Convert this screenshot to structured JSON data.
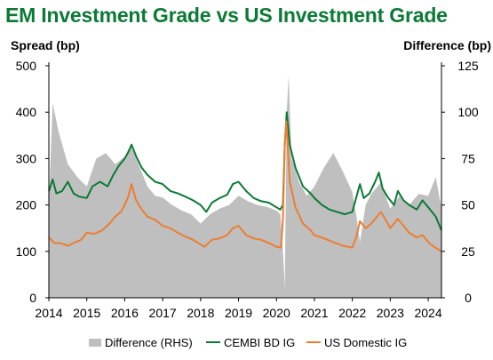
{
  "title": "EM Investment Grade vs US Investment Grade",
  "chart_data": {
    "type": "line",
    "ylabel_left": "Spread (bp)",
    "ylabel_right": "Difference (bp)",
    "x_ticks": [
      "2014",
      "2015",
      "2016",
      "2017",
      "2018",
      "2019",
      "2020",
      "2021",
      "2022",
      "2023",
      "2024"
    ],
    "y_left_ticks": [
      "0",
      "100",
      "200",
      "300",
      "400",
      "500"
    ],
    "y_right_ticks": [
      "0",
      "25",
      "50",
      "75",
      "100",
      "125"
    ],
    "ylim_left": [
      0,
      500
    ],
    "ylim_right": [
      0,
      125
    ],
    "xlim": [
      2014.0,
      2024.35
    ],
    "grid": false,
    "legend_position": "bottom",
    "series": [
      {
        "name": "Difference (RHS)",
        "kind": "area",
        "axis": "right",
        "color": "#bfbfbf",
        "points": [
          [
            2014.0,
            50
          ],
          [
            2014.1,
            105
          ],
          [
            2014.25,
            90
          ],
          [
            2014.5,
            72
          ],
          [
            2014.75,
            65
          ],
          [
            2015.0,
            60
          ],
          [
            2015.25,
            75
          ],
          [
            2015.5,
            78
          ],
          [
            2015.75,
            72
          ],
          [
            2016.0,
            76
          ],
          [
            2016.15,
            82
          ],
          [
            2016.4,
            70
          ],
          [
            2016.6,
            60
          ],
          [
            2016.8,
            55
          ],
          [
            2017.0,
            54
          ],
          [
            2017.25,
            50
          ],
          [
            2017.5,
            47
          ],
          [
            2017.75,
            45
          ],
          [
            2018.0,
            40
          ],
          [
            2018.25,
            45
          ],
          [
            2018.5,
            48
          ],
          [
            2018.75,
            50
          ],
          [
            2019.0,
            55
          ],
          [
            2019.25,
            52
          ],
          [
            2019.5,
            50
          ],
          [
            2019.75,
            49
          ],
          [
            2020.0,
            47
          ],
          [
            2020.1,
            45
          ],
          [
            2020.18,
            22
          ],
          [
            2020.22,
            5
          ],
          [
            2020.27,
            100
          ],
          [
            2020.32,
            120
          ],
          [
            2020.4,
            75
          ],
          [
            2020.6,
            62
          ],
          [
            2020.8,
            55
          ],
          [
            2021.0,
            60
          ],
          [
            2021.25,
            70
          ],
          [
            2021.5,
            78
          ],
          [
            2021.75,
            68
          ],
          [
            2022.0,
            57
          ],
          [
            2022.1,
            45
          ],
          [
            2022.2,
            30
          ],
          [
            2022.35,
            50
          ],
          [
            2022.5,
            56
          ],
          [
            2022.75,
            62
          ],
          [
            2023.0,
            48
          ],
          [
            2023.25,
            55
          ],
          [
            2023.5,
            50
          ],
          [
            2023.75,
            56
          ],
          [
            2024.0,
            55
          ],
          [
            2024.2,
            65
          ],
          [
            2024.35,
            48
          ]
        ]
      },
      {
        "name": "CEMBI BD IG",
        "kind": "line",
        "axis": "left",
        "color": "#0b7a35",
        "points": [
          [
            2014.0,
            230
          ],
          [
            2014.1,
            255
          ],
          [
            2014.2,
            225
          ],
          [
            2014.35,
            230
          ],
          [
            2014.5,
            250
          ],
          [
            2014.65,
            225
          ],
          [
            2014.8,
            218
          ],
          [
            2015.0,
            215
          ],
          [
            2015.15,
            240
          ],
          [
            2015.35,
            250
          ],
          [
            2015.55,
            240
          ],
          [
            2015.7,
            265
          ],
          [
            2015.85,
            285
          ],
          [
            2016.0,
            300
          ],
          [
            2016.1,
            315
          ],
          [
            2016.18,
            330
          ],
          [
            2016.3,
            305
          ],
          [
            2016.45,
            280
          ],
          [
            2016.6,
            265
          ],
          [
            2016.8,
            250
          ],
          [
            2017.0,
            245
          ],
          [
            2017.2,
            230
          ],
          [
            2017.4,
            225
          ],
          [
            2017.6,
            218
          ],
          [
            2017.8,
            210
          ],
          [
            2018.0,
            200
          ],
          [
            2018.15,
            185
          ],
          [
            2018.3,
            205
          ],
          [
            2018.5,
            215
          ],
          [
            2018.7,
            222
          ],
          [
            2018.85,
            245
          ],
          [
            2019.0,
            250
          ],
          [
            2019.2,
            230
          ],
          [
            2019.4,
            215
          ],
          [
            2019.6,
            208
          ],
          [
            2019.8,
            205
          ],
          [
            2020.0,
            195
          ],
          [
            2020.1,
            190
          ],
          [
            2020.17,
            200
          ],
          [
            2020.22,
            330
          ],
          [
            2020.27,
            400
          ],
          [
            2020.35,
            330
          ],
          [
            2020.5,
            280
          ],
          [
            2020.7,
            240
          ],
          [
            2020.9,
            225
          ],
          [
            2021.0,
            215
          ],
          [
            2021.2,
            200
          ],
          [
            2021.4,
            190
          ],
          [
            2021.6,
            185
          ],
          [
            2021.8,
            180
          ],
          [
            2022.0,
            185
          ],
          [
            2022.1,
            215
          ],
          [
            2022.2,
            245
          ],
          [
            2022.3,
            215
          ],
          [
            2022.45,
            225
          ],
          [
            2022.6,
            250
          ],
          [
            2022.7,
            270
          ],
          [
            2022.8,
            235
          ],
          [
            2022.95,
            215
          ],
          [
            2023.1,
            200
          ],
          [
            2023.2,
            230
          ],
          [
            2023.35,
            210
          ],
          [
            2023.5,
            200
          ],
          [
            2023.7,
            190
          ],
          [
            2023.85,
            210
          ],
          [
            2024.0,
            195
          ],
          [
            2024.2,
            175
          ],
          [
            2024.35,
            145
          ]
        ]
      },
      {
        "name": "US Domestic IG",
        "kind": "line",
        "axis": "left",
        "color": "#ed7d31",
        "points": [
          [
            2014.0,
            130
          ],
          [
            2014.15,
            118
          ],
          [
            2014.3,
            118
          ],
          [
            2014.5,
            112
          ],
          [
            2014.7,
            120
          ],
          [
            2014.85,
            125
          ],
          [
            2015.0,
            140
          ],
          [
            2015.2,
            138
          ],
          [
            2015.4,
            145
          ],
          [
            2015.6,
            160
          ],
          [
            2015.75,
            175
          ],
          [
            2015.9,
            185
          ],
          [
            2016.0,
            200
          ],
          [
            2016.1,
            220
          ],
          [
            2016.18,
            245
          ],
          [
            2016.3,
            210
          ],
          [
            2016.45,
            190
          ],
          [
            2016.6,
            175
          ],
          [
            2016.8,
            168
          ],
          [
            2017.0,
            155
          ],
          [
            2017.2,
            150
          ],
          [
            2017.4,
            140
          ],
          [
            2017.6,
            132
          ],
          [
            2017.8,
            125
          ],
          [
            2018.0,
            115
          ],
          [
            2018.1,
            110
          ],
          [
            2018.3,
            125
          ],
          [
            2018.5,
            128
          ],
          [
            2018.7,
            135
          ],
          [
            2018.85,
            150
          ],
          [
            2019.0,
            155
          ],
          [
            2019.2,
            135
          ],
          [
            2019.4,
            128
          ],
          [
            2019.6,
            125
          ],
          [
            2019.8,
            118
          ],
          [
            2020.0,
            110
          ],
          [
            2020.12,
            108
          ],
          [
            2020.17,
            170
          ],
          [
            2020.22,
            330
          ],
          [
            2020.26,
            380
          ],
          [
            2020.35,
            250
          ],
          [
            2020.5,
            195
          ],
          [
            2020.7,
            160
          ],
          [
            2020.9,
            145
          ],
          [
            2021.0,
            135
          ],
          [
            2021.25,
            128
          ],
          [
            2021.5,
            120
          ],
          [
            2021.75,
            112
          ],
          [
            2022.0,
            108
          ],
          [
            2022.1,
            130
          ],
          [
            2022.2,
            165
          ],
          [
            2022.35,
            150
          ],
          [
            2022.5,
            160
          ],
          [
            2022.65,
            175
          ],
          [
            2022.75,
            185
          ],
          [
            2022.9,
            165
          ],
          [
            2023.0,
            150
          ],
          [
            2023.2,
            170
          ],
          [
            2023.35,
            155
          ],
          [
            2023.5,
            140
          ],
          [
            2023.7,
            130
          ],
          [
            2023.85,
            135
          ],
          [
            2024.0,
            120
          ],
          [
            2024.15,
            110
          ],
          [
            2024.35,
            100
          ]
        ]
      }
    ]
  }
}
